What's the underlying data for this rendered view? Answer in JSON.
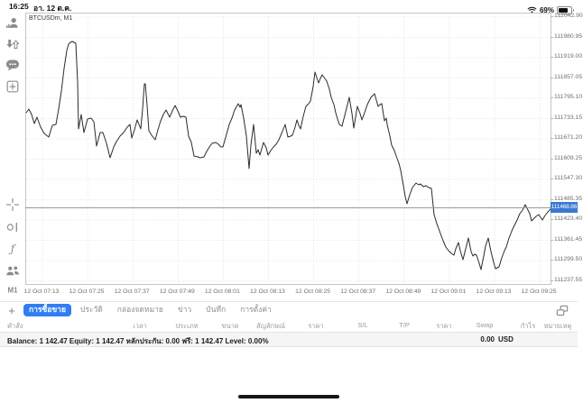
{
  "status_bar": {
    "time": "16:25",
    "date": "อา. 12 ต.ค.",
    "battery_percent": "69%"
  },
  "sidebar": {
    "icons": [
      {
        "name": "account-icon"
      },
      {
        "name": "trade-arrows-icon"
      },
      {
        "name": "chat-icon"
      },
      {
        "name": "new-order-icon"
      },
      {
        "name": "crosshair-icon"
      },
      {
        "name": "objects-icon"
      },
      {
        "name": "indicators-icon"
      },
      {
        "name": "community-icon"
      },
      {
        "name": "timeframe-button"
      }
    ],
    "indicators_glyph": "ƒ",
    "timeframe_label": "M1"
  },
  "chart": {
    "symbol_label": "BTCUSDm, M1",
    "current_price": "111468.86",
    "price_axis_labels": [
      "112042.90",
      "111980.95",
      "111919.00",
      "111857.05",
      "111795.10",
      "111733.15",
      "111671.20",
      "111609.25",
      "111547.30",
      "111485.35",
      "111423.40",
      "111361.45",
      "111299.50",
      "111237.55"
    ],
    "time_axis_labels": [
      "12 Oct 07:13",
      "12 Oct 07:25",
      "12 Oct 07:37",
      "12 Oct 07:49",
      "12 Oct 08:01",
      "12 Oct 08:13",
      "12 Oct 08:25",
      "12 Oct 08:37",
      "12 Oct 08:49",
      "12 Oct 09:01",
      "12 Oct 09:13",
      "12 Oct 09:25"
    ],
    "line_points": [
      [
        0,
        110
      ],
      [
        3,
        106
      ],
      [
        6,
        112
      ],
      [
        9,
        122
      ],
      [
        12,
        115
      ],
      [
        16,
        126
      ],
      [
        20,
        133
      ],
      [
        25,
        137
      ],
      [
        29,
        124
      ],
      [
        33,
        123
      ],
      [
        36,
        106
      ],
      [
        39,
        86
      ],
      [
        42,
        61
      ],
      [
        45,
        41
      ],
      [
        47,
        34
      ],
      [
        49,
        32
      ],
      [
        51,
        31
      ],
      [
        53,
        32
      ],
      [
        55,
        33
      ],
      [
        57,
        76
      ],
      [
        58,
        128
      ],
      [
        61,
        112
      ],
      [
        64,
        132
      ],
      [
        68,
        117
      ],
      [
        72,
        116
      ],
      [
        75,
        120
      ],
      [
        78,
        147
      ],
      [
        82,
        132
      ],
      [
        85,
        132
      ],
      [
        89,
        144
      ],
      [
        93,
        160
      ],
      [
        97,
        148
      ],
      [
        100,
        142
      ],
      [
        104,
        136
      ],
      [
        108,
        132
      ],
      [
        112,
        126
      ],
      [
        115,
        123
      ],
      [
        117,
        138
      ],
      [
        120,
        129
      ],
      [
        123,
        118
      ],
      [
        127,
        128
      ],
      [
        129,
        106
      ],
      [
        130,
        91
      ],
      [
        131,
        78
      ],
      [
        132,
        78
      ],
      [
        134,
        102
      ],
      [
        136,
        130
      ],
      [
        139,
        135
      ],
      [
        143,
        140
      ],
      [
        146,
        129
      ],
      [
        149,
        119
      ],
      [
        152,
        112
      ],
      [
        155,
        107
      ],
      [
        159,
        115
      ],
      [
        162,
        108
      ],
      [
        165,
        102
      ],
      [
        168,
        108
      ],
      [
        171,
        115
      ],
      [
        174,
        114
      ],
      [
        177,
        115
      ],
      [
        180,
        136
      ],
      [
        183,
        143
      ],
      [
        186,
        158
      ],
      [
        190,
        159
      ],
      [
        193,
        160
      ],
      [
        197,
        159
      ],
      [
        200,
        153
      ],
      [
        203,
        148
      ],
      [
        206,
        144
      ],
      [
        210,
        143
      ],
      [
        213,
        145
      ],
      [
        216,
        148
      ],
      [
        218,
        148
      ],
      [
        222,
        134
      ],
      [
        225,
        123
      ],
      [
        228,
        116
      ],
      [
        231,
        107
      ],
      [
        235,
        100
      ],
      [
        237,
        104
      ],
      [
        238,
        101
      ],
      [
        241,
        116
      ],
      [
        244,
        136
      ],
      [
        247,
        172
      ],
      [
        249,
        146
      ],
      [
        252,
        123
      ],
      [
        255,
        155
      ],
      [
        257,
        151
      ],
      [
        259,
        157
      ],
      [
        263,
        143
      ],
      [
        266,
        149
      ],
      [
        268,
        157
      ],
      [
        271,
        152
      ],
      [
        274,
        148
      ],
      [
        277,
        145
      ],
      [
        280,
        140
      ],
      [
        283,
        133
      ],
      [
        287,
        123
      ],
      [
        290,
        137
      ],
      [
        293,
        136
      ],
      [
        295,
        135
      ],
      [
        298,
        126
      ],
      [
        300,
        118
      ],
      [
        302,
        124
      ],
      [
        304,
        128
      ],
      [
        307,
        114
      ],
      [
        310,
        103
      ],
      [
        313,
        100
      ],
      [
        315,
        97
      ],
      [
        318,
        81
      ],
      [
        320,
        65
      ],
      [
        322,
        71
      ],
      [
        324,
        77
      ],
      [
        326,
        72
      ],
      [
        328,
        68
      ],
      [
        331,
        72
      ],
      [
        333,
        75
      ],
      [
        336,
        84
      ],
      [
        338,
        93
      ],
      [
        341,
        101
      ],
      [
        343,
        110
      ],
      [
        345,
        117
      ],
      [
        347,
        123
      ],
      [
        350,
        125
      ],
      [
        353,
        113
      ],
      [
        356,
        101
      ],
      [
        358,
        93
      ],
      [
        361,
        111
      ],
      [
        363,
        127
      ],
      [
        365,
        115
      ],
      [
        367,
        103
      ],
      [
        370,
        111
      ],
      [
        372,
        118
      ],
      [
        375,
        110
      ],
      [
        378,
        101
      ],
      [
        382,
        93
      ],
      [
        385,
        90
      ],
      [
        386,
        89
      ],
      [
        388,
        96
      ],
      [
        390,
        103
      ],
      [
        392,
        101
      ],
      [
        394,
        100
      ],
      [
        397,
        119
      ],
      [
        399,
        116
      ],
      [
        400,
        123
      ],
      [
        403,
        136
      ],
      [
        405,
        146
      ],
      [
        408,
        152
      ],
      [
        410,
        158
      ],
      [
        413,
        166
      ],
      [
        415,
        174
      ],
      [
        418,
        191
      ],
      [
        420,
        203
      ],
      [
        422,
        211
      ],
      [
        425,
        201
      ],
      [
        428,
        193
      ],
      [
        432,
        188
      ],
      [
        435,
        190
      ],
      [
        437,
        189
      ],
      [
        440,
        192
      ],
      [
        443,
        191
      ],
      [
        446,
        193
      ],
      [
        449,
        194
      ],
      [
        452,
        223
      ],
      [
        455,
        233
      ],
      [
        459,
        244
      ],
      [
        462,
        252
      ],
      [
        465,
        259
      ],
      [
        468,
        263
      ],
      [
        471,
        266
      ],
      [
        474,
        268
      ],
      [
        476,
        261
      ],
      [
        479,
        254
      ],
      [
        481,
        263
      ],
      [
        484,
        273
      ],
      [
        487,
        261
      ],
      [
        490,
        249
      ],
      [
        493,
        264
      ],
      [
        495,
        269
      ],
      [
        497,
        267
      ],
      [
        499,
        268
      ],
      [
        502,
        277
      ],
      [
        504,
        284
      ],
      [
        507,
        269
      ],
      [
        509,
        258
      ],
      [
        512,
        249
      ],
      [
        515,
        264
      ],
      [
        518,
        276
      ],
      [
        520,
        283
      ],
      [
        524,
        281
      ],
      [
        527,
        271
      ],
      [
        530,
        263
      ],
      [
        532,
        259
      ],
      [
        535,
        249
      ],
      [
        539,
        239
      ],
      [
        542,
        233
      ],
      [
        544,
        229
      ],
      [
        547,
        222
      ],
      [
        550,
        218
      ],
      [
        553,
        212
      ],
      [
        555,
        216
      ],
      [
        558,
        222
      ],
      [
        560,
        230
      ],
      [
        563,
        227
      ],
      [
        565,
        225
      ],
      [
        568,
        223
      ],
      [
        570,
        226
      ],
      [
        572,
        229
      ],
      [
        575,
        224
      ],
      [
        578,
        220
      ],
      [
        581,
        217
      ],
      [
        583,
        216
      ]
    ]
  },
  "tabbar": {
    "add_label": "+",
    "tabs": [
      {
        "label": "การซื้อขาย",
        "active": true
      },
      {
        "label": "ประวัติ",
        "active": false
      },
      {
        "label": "กล่องจดหมาย",
        "active": false
      },
      {
        "label": "ข่าว",
        "active": false
      },
      {
        "label": "บันทึก",
        "active": false
      },
      {
        "label": "การตั้งค่า",
        "active": false
      }
    ]
  },
  "table": {
    "columns": [
      "คำสั่ง",
      "เวลา",
      "ประเภท",
      "ขนาด",
      "สัญลักษณ์",
      "ราคา",
      "S/L",
      "T/P",
      "ราคา",
      "Swap",
      "กำไร",
      "หมายเหตุ"
    ]
  },
  "account": {
    "summary": "Balance: 1 142.47 Equity: 1 142.47 หลักประกัน: 0.00 ฟรี: 1 142.47 Level: 0.00%",
    "profit": "0.00",
    "currency": "USD"
  },
  "colors": {
    "accent": "#317ef3",
    "price_badge": "#3a79d1",
    "chart_line": "#2b2b2b"
  }
}
